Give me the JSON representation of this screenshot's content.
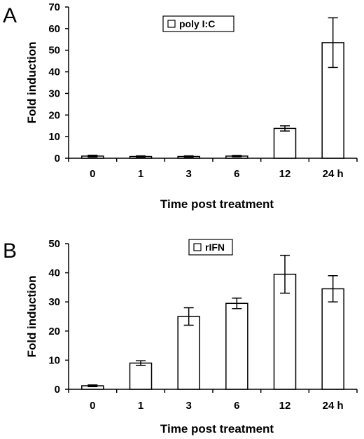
{
  "chart_data": [
    {
      "type": "bar",
      "panel": "A",
      "legend": "poly I:C",
      "categories": [
        "0",
        "1",
        "3",
        "6",
        "12",
        "24 h"
      ],
      "values": [
        1,
        0.8,
        0.8,
        1,
        13.8,
        53.5
      ],
      "errors": [
        0.4,
        0.3,
        0.3,
        0.3,
        1.2,
        11.5
      ],
      "xlabel": "Time post treatment",
      "ylabel": "Fold induction",
      "ylim": [
        0,
        70
      ],
      "yticks": [
        "0",
        "10",
        "20",
        "30",
        "40",
        "50",
        "60",
        "70"
      ],
      "grid": false,
      "legend_position": "top-center"
    },
    {
      "type": "bar",
      "panel": "B",
      "legend": "rIFN",
      "categories": [
        "0",
        "1",
        "3",
        "6",
        "12",
        "24 h"
      ],
      "values": [
        1.2,
        9,
        25,
        29.5,
        39.5,
        34.5
      ],
      "errors": [
        0.3,
        0.8,
        3.0,
        1.8,
        6.5,
        4.5
      ],
      "xlabel": "Time post treatment",
      "ylabel": "Fold induction",
      "ylim": [
        0,
        50
      ],
      "yticks": [
        "0",
        "10",
        "20",
        "30",
        "40",
        "50"
      ],
      "grid": false,
      "legend_position": "top-center"
    }
  ]
}
